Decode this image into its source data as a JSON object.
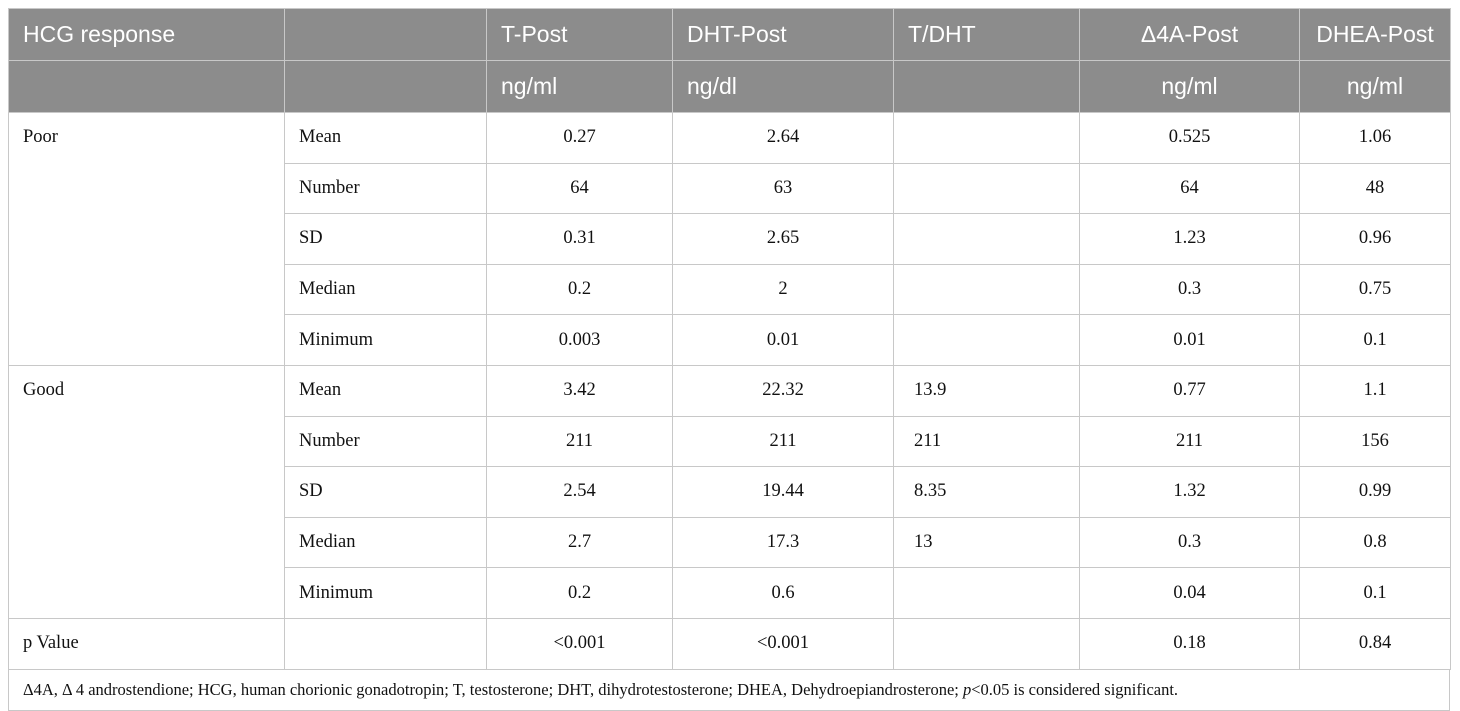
{
  "header": {
    "row1": [
      "HCG response",
      "",
      "T-Post",
      "DHT-Post",
      "T/DHT",
      "Δ4A-Post",
      "DHEA-Post"
    ],
    "row2": [
      "",
      "",
      "ng/ml",
      "ng/dl",
      "",
      "ng/ml",
      "ng/ml"
    ]
  },
  "groups": [
    {
      "label": "Poor",
      "rows": [
        {
          "stat": "Mean",
          "t": "0.27",
          "dht": "2.64",
          "tdht": "",
          "d4a": "0.525",
          "dhea": "1.06"
        },
        {
          "stat": "Number",
          "t": "64",
          "dht": "63",
          "tdht": "",
          "d4a": "64",
          "dhea": "48"
        },
        {
          "stat": "SD",
          "t": "0.31",
          "dht": "2.65",
          "tdht": "",
          "d4a": "1.23",
          "dhea": "0.96"
        },
        {
          "stat": "Median",
          "t": "0.2",
          "dht": "2",
          "tdht": "",
          "d4a": "0.3",
          "dhea": "0.75"
        },
        {
          "stat": "Minimum",
          "t": "0.003",
          "dht": "0.01",
          "tdht": "",
          "d4a": "0.01",
          "dhea": "0.1"
        }
      ]
    },
    {
      "label": "Good",
      "rows": [
        {
          "stat": "Mean",
          "t": "3.42",
          "dht": "22.32",
          "tdht": "13.9",
          "d4a": "0.77",
          "dhea": "1.1"
        },
        {
          "stat": "Number",
          "t": "211",
          "dht": "211",
          "tdht": "211",
          "d4a": "211",
          "dhea": "156"
        },
        {
          "stat": "SD",
          "t": "2.54",
          "dht": "19.44",
          "tdht": "8.35",
          "d4a": "1.32",
          "dhea": "0.99"
        },
        {
          "stat": "Median",
          "t": "2.7",
          "dht": "17.3",
          "tdht": "13",
          "d4a": "0.3",
          "dhea": "0.8"
        },
        {
          "stat": "Minimum",
          "t": "0.2",
          "dht": "0.6",
          "tdht": "",
          "d4a": "0.04",
          "dhea": "0.1"
        }
      ]
    }
  ],
  "pvalue": {
    "label": "p Value",
    "stat": "",
    "t": "<0.001",
    "dht": "<0.001",
    "tdht": "",
    "d4a": "0.18",
    "dhea": "0.84"
  },
  "footnote": {
    "before": "Δ4A, Δ 4 androstendione; HCG, human chorionic gonadotropin; T, testosterone; DHT, dihydrotestosterone; DHEA, Dehydroepiandrosterone; ",
    "italic": "p",
    "after": "<0.05 is considered significant."
  },
  "colors": {
    "header_bg": "#8c8c8c",
    "header_text": "#ffffff",
    "rule": "#c8c8c8"
  }
}
